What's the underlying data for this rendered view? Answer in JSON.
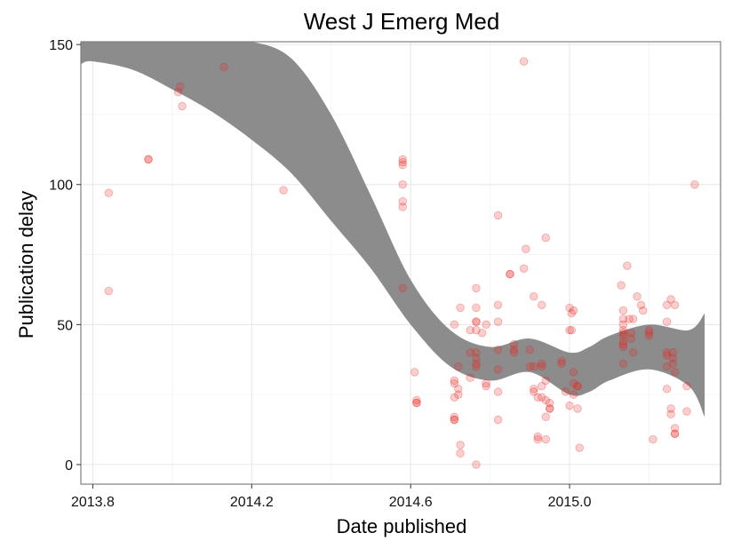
{
  "chart_data": {
    "type": "scatter",
    "title": "West J Emerg Med",
    "xlabel": "Date published",
    "ylabel": "Publication delay",
    "xlim": [
      2013.77,
      2015.38
    ],
    "ylim": [
      -7,
      151
    ],
    "xticks": [
      2013.8,
      2014.2,
      2014.6,
      2015.0
    ],
    "xtick_labels": [
      "2013.8",
      "2014.2",
      "2014.6",
      "2015.0"
    ],
    "yticks": [
      0,
      50,
      100,
      150
    ],
    "ytick_labels": [
      "0",
      "50",
      "100",
      "150"
    ],
    "grid": true,
    "point_color": "#e8231f",
    "band_color": "#8c8c8c",
    "smooth_band": {
      "x": [
        2013.77,
        2013.8,
        2013.9,
        2014.0,
        2014.1,
        2014.2,
        2014.3,
        2014.4,
        2014.5,
        2014.6,
        2014.7,
        2014.8,
        2014.9,
        2015.0,
        2015.05,
        2015.1,
        2015.2,
        2015.3,
        2015.34
      ],
      "upper": [
        151,
        151,
        151,
        151,
        151,
        151,
        145,
        125,
        96,
        66,
        48,
        42,
        45,
        40,
        42,
        46,
        50,
        48,
        54
      ],
      "lower": [
        143,
        144,
        141,
        134,
        126,
        116,
        104,
        87,
        70,
        50,
        35,
        30,
        33,
        25,
        26,
        30,
        34,
        28,
        17
      ]
    },
    "points": [
      [
        2013.84,
        97
      ],
      [
        2013.84,
        62
      ],
      [
        2013.94,
        109
      ],
      [
        2013.94,
        109
      ],
      [
        2014.015,
        133
      ],
      [
        2014.02,
        135
      ],
      [
        2014.025,
        128
      ],
      [
        2014.13,
        142
      ],
      [
        2014.28,
        98
      ],
      [
        2014.58,
        109
      ],
      [
        2014.58,
        108
      ],
      [
        2014.58,
        107
      ],
      [
        2014.58,
        100
      ],
      [
        2014.58,
        94
      ],
      [
        2014.58,
        92
      ],
      [
        2014.58,
        63
      ],
      [
        2014.61,
        33
      ],
      [
        2014.615,
        23
      ],
      [
        2014.615,
        22
      ],
      [
        2014.615,
        22
      ],
      [
        2014.71,
        50
      ],
      [
        2014.71,
        30
      ],
      [
        2014.71,
        29
      ],
      [
        2014.71,
        24
      ],
      [
        2014.71,
        17
      ],
      [
        2014.71,
        16
      ],
      [
        2014.71,
        16
      ],
      [
        2014.72,
        35
      ],
      [
        2014.72,
        27
      ],
      [
        2014.72,
        25
      ],
      [
        2014.725,
        56
      ],
      [
        2014.725,
        7
      ],
      [
        2014.725,
        4
      ],
      [
        2014.75,
        48
      ],
      [
        2014.75,
        40
      ],
      [
        2014.75,
        31
      ],
      [
        2014.765,
        63
      ],
      [
        2014.765,
        56
      ],
      [
        2014.765,
        51
      ],
      [
        2014.765,
        51
      ],
      [
        2014.765,
        48
      ],
      [
        2014.765,
        40
      ],
      [
        2014.765,
        38
      ],
      [
        2014.765,
        36
      ],
      [
        2014.765,
        35
      ],
      [
        2014.765,
        0
      ],
      [
        2014.78,
        47
      ],
      [
        2014.79,
        50
      ],
      [
        2014.79,
        29
      ],
      [
        2014.79,
        28
      ],
      [
        2014.82,
        89
      ],
      [
        2014.82,
        57
      ],
      [
        2014.82,
        51
      ],
      [
        2014.82,
        41
      ],
      [
        2014.82,
        34
      ],
      [
        2014.82,
        26
      ],
      [
        2014.82,
        16
      ],
      [
        2014.85,
        68
      ],
      [
        2014.85,
        68
      ],
      [
        2014.86,
        43
      ],
      [
        2014.86,
        41
      ],
      [
        2014.86,
        40
      ],
      [
        2014.885,
        144
      ],
      [
        2014.885,
        70
      ],
      [
        2014.89,
        77
      ],
      [
        2014.9,
        41
      ],
      [
        2014.9,
        35
      ],
      [
        2014.91,
        60
      ],
      [
        2014.91,
        35
      ],
      [
        2014.91,
        27
      ],
      [
        2014.91,
        26
      ],
      [
        2014.92,
        24
      ],
      [
        2014.92,
        10
      ],
      [
        2014.92,
        9
      ],
      [
        2014.93,
        57
      ],
      [
        2014.93,
        36
      ],
      [
        2014.93,
        35
      ],
      [
        2014.93,
        28
      ],
      [
        2014.93,
        24
      ],
      [
        2014.94,
        81
      ],
      [
        2014.94,
        30
      ],
      [
        2014.94,
        23
      ],
      [
        2014.94,
        17
      ],
      [
        2014.94,
        9
      ],
      [
        2014.95,
        22
      ],
      [
        2014.95,
        20
      ],
      [
        2014.95,
        20
      ],
      [
        2014.98,
        37
      ],
      [
        2014.98,
        36
      ],
      [
        2014.99,
        26
      ],
      [
        2015.0,
        56
      ],
      [
        2015.005,
        54
      ],
      [
        2015.01,
        55
      ],
      [
        2015.0,
        48
      ],
      [
        2015.005,
        48
      ],
      [
        2015.01,
        33
      ],
      [
        2015.01,
        29
      ],
      [
        2015.0,
        21
      ],
      [
        2015.01,
        25
      ],
      [
        2015.02,
        28
      ],
      [
        2015.02,
        28
      ],
      [
        2015.02,
        20
      ],
      [
        2015.025,
        6
      ],
      [
        2015.13,
        64
      ],
      [
        2015.135,
        55
      ],
      [
        2015.135,
        52
      ],
      [
        2015.135,
        50
      ],
      [
        2015.135,
        48
      ],
      [
        2015.135,
        47
      ],
      [
        2015.135,
        46
      ],
      [
        2015.135,
        44
      ],
      [
        2015.135,
        43
      ],
      [
        2015.135,
        42
      ],
      [
        2015.135,
        36
      ],
      [
        2015.145,
        71
      ],
      [
        2015.15,
        52
      ],
      [
        2015.16,
        52
      ],
      [
        2015.155,
        47
      ],
      [
        2015.155,
        45
      ],
      [
        2015.16,
        40
      ],
      [
        2015.17,
        60
      ],
      [
        2015.18,
        57
      ],
      [
        2015.185,
        55
      ],
      [
        2015.2,
        48
      ],
      [
        2015.2,
        47
      ],
      [
        2015.2,
        46
      ],
      [
        2015.21,
        9
      ],
      [
        2015.245,
        57
      ],
      [
        2015.245,
        51
      ],
      [
        2015.245,
        40
      ],
      [
        2015.245,
        39
      ],
      [
        2015.245,
        35
      ],
      [
        2015.245,
        27
      ],
      [
        2015.255,
        59
      ],
      [
        2015.26,
        40
      ],
      [
        2015.26,
        38
      ],
      [
        2015.26,
        36
      ],
      [
        2015.255,
        20
      ],
      [
        2015.255,
        18
      ],
      [
        2015.265,
        57
      ],
      [
        2015.265,
        33
      ],
      [
        2015.265,
        13
      ],
      [
        2015.265,
        11
      ],
      [
        2015.265,
        11
      ],
      [
        2015.295,
        28
      ],
      [
        2015.295,
        19
      ],
      [
        2015.315,
        100
      ]
    ]
  }
}
